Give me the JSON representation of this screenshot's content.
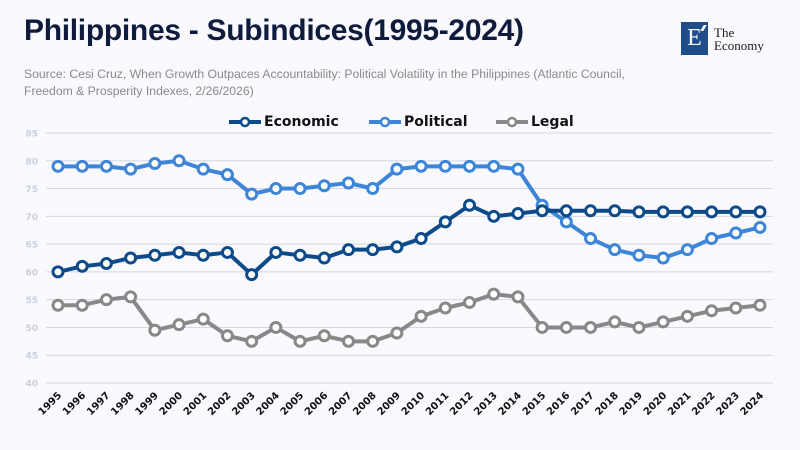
{
  "header": {
    "title": "Philippines - Subindices(1995-2024)",
    "source_line1": "Source: Cesi Cruz, When Growth Outpaces Accountability: Political Volatility in the Philippines (Atlantic Council,",
    "source_line2": "Freedom & Prosperity Indexes, 2/26/2026)"
  },
  "logo": {
    "letter": "E",
    "line1": "The",
    "line2": "Economy",
    "color": "#1f4d8c"
  },
  "chart_data": {
    "type": "line",
    "title": "Philippines - Subindices(1995-2024)",
    "xlabel": "",
    "ylabel": "",
    "ylim": [
      40,
      85
    ],
    "yticks": [
      40,
      45,
      50,
      55,
      60,
      65,
      70,
      75,
      80,
      85
    ],
    "grid": true,
    "legend_position": "top-center",
    "x": [
      "1995",
      "1996",
      "1997",
      "1998",
      "1999",
      "2000",
      "2001",
      "2002",
      "2003",
      "2004",
      "2005",
      "2006",
      "2007",
      "2008",
      "2009",
      "2010",
      "2011",
      "2012",
      "2013",
      "2014",
      "2015",
      "2016",
      "2017",
      "2018",
      "2019",
      "2020",
      "2021",
      "2022",
      "2023",
      "2024"
    ],
    "series": [
      {
        "name": "Economic",
        "color": "#0d4a8a",
        "values": [
          60,
          61,
          61.5,
          62.5,
          63,
          63.5,
          63,
          63.5,
          59.5,
          63.5,
          63,
          62.5,
          64,
          64,
          64.5,
          66,
          69,
          72,
          70,
          70.5,
          71,
          71,
          71,
          71,
          70.8,
          70.8,
          70.8,
          70.8,
          70.8,
          70.8
        ]
      },
      {
        "name": "Political",
        "color": "#3d85d8",
        "values": [
          79,
          79,
          79,
          78.5,
          79.5,
          80,
          78.5,
          77.5,
          74,
          75,
          75,
          75.5,
          76,
          75,
          78.5,
          79,
          79,
          79,
          79,
          78.5,
          72,
          69,
          66,
          64,
          63,
          62.5,
          64,
          66,
          67,
          68
        ]
      },
      {
        "name": "Legal",
        "color": "#888888",
        "values": [
          54,
          54,
          55,
          55.5,
          49.5,
          50.5,
          51.5,
          48.5,
          47.5,
          50,
          47.5,
          48.5,
          47.5,
          47.5,
          49,
          52,
          53.5,
          54.5,
          56,
          55.5,
          50,
          50,
          50,
          51,
          50,
          51,
          52,
          53,
          53.5,
          54
        ]
      }
    ]
  }
}
